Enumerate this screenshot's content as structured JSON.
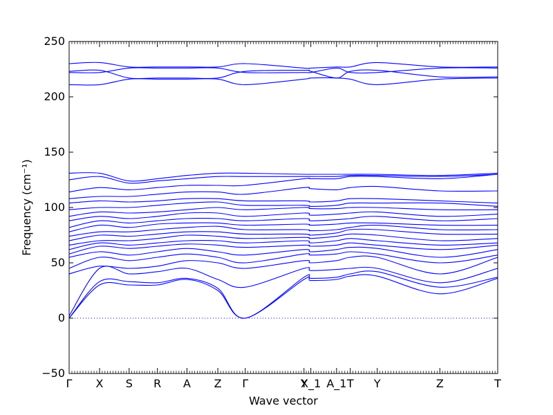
{
  "chart_data": {
    "type": "line",
    "title": "",
    "xlabel": "Wave vector",
    "ylabel": "Frequency (cm⁻¹)",
    "ylim": [
      -50,
      250
    ],
    "yticks": [
      -50,
      0,
      50,
      100,
      150,
      200,
      250
    ],
    "xlim": [
      0,
      1
    ],
    "high_symmetry_points": [
      {
        "label": "Γ",
        "x": 0.0
      },
      {
        "label": "X",
        "x": 0.071
      },
      {
        "label": "S",
        "x": 0.14
      },
      {
        "label": "R",
        "x": 0.206
      },
      {
        "label": "A",
        "x": 0.275
      },
      {
        "label": "Z",
        "x": 0.347
      },
      {
        "label": "Γ",
        "x": 0.411
      },
      {
        "label": "Y",
        "x": 0.548
      },
      {
        "label": "X_1",
        "x": 0.564
      },
      {
        "label": "A_1",
        "x": 0.624
      },
      {
        "label": "T",
        "x": 0.656
      },
      {
        "label": "Y",
        "x": 0.719
      },
      {
        "label": "Z",
        "x": 0.865
      },
      {
        "label": "T",
        "x": 1.0
      }
    ],
    "zero_line": 0,
    "line_color": "#0000ff",
    "series": [
      {
        "x": [
          0,
          0.071,
          0.14,
          0.206,
          0.275,
          0.347,
          0.411,
          0.548,
          0.564,
          0.624,
          0.656,
          0.719,
          0.865,
          1
        ],
        "y": [
          0,
          30,
          30,
          30,
          35,
          25,
          0,
          35,
          34,
          35,
          38,
          38,
          22,
          36
        ]
      },
      {
        "x": [
          0,
          0.071,
          0.14,
          0.206,
          0.275,
          0.347,
          0.411,
          0.548,
          0.564,
          0.624,
          0.656,
          0.719,
          0.865,
          1
        ],
        "y": [
          0,
          33,
          33,
          32,
          36,
          27,
          0,
          37,
          36,
          37,
          40,
          42,
          28,
          37
        ]
      },
      {
        "x": [
          0,
          0.071,
          0.14,
          0.206,
          0.275,
          0.347,
          0.411,
          0.548,
          0.564,
          0.624,
          0.656,
          0.719,
          0.865,
          1
        ],
        "y": [
          2,
          45,
          40,
          42,
          45,
          35,
          28,
          45,
          43,
          44,
          45,
          45,
          32,
          45
        ]
      },
      {
        "x": [
          0,
          0.071,
          0.14,
          0.206,
          0.275,
          0.347,
          0.411,
          0.548,
          0.564,
          0.624,
          0.656,
          0.719,
          0.865,
          1
        ],
        "y": [
          40,
          47,
          45,
          47,
          52,
          50,
          45,
          52,
          50,
          52,
          55,
          55,
          40,
          55
        ]
      },
      {
        "x": [
          0,
          0.071,
          0.14,
          0.206,
          0.275,
          0.347,
          0.411,
          0.548,
          0.564,
          0.624,
          0.656,
          0.719,
          0.865,
          1
        ],
        "y": [
          45,
          55,
          52,
          55,
          58,
          55,
          50,
          58,
          57,
          58,
          60,
          58,
          50,
          57
        ]
      },
      {
        "x": [
          0,
          0.071,
          0.14,
          0.206,
          0.275,
          0.347,
          0.411,
          0.548,
          0.564,
          0.624,
          0.656,
          0.719,
          0.865,
          1
        ],
        "y": [
          55,
          60,
          57,
          60,
          63,
          60,
          57,
          62,
          60,
          62,
          64,
          63,
          55,
          62
        ]
      },
      {
        "x": [
          0,
          0.071,
          0.14,
          0.206,
          0.275,
          0.347,
          0.411,
          0.548,
          0.564,
          0.624,
          0.656,
          0.719,
          0.865,
          1
        ],
        "y": [
          58,
          65,
          63,
          65,
          67,
          66,
          64,
          66,
          65,
          66,
          68,
          66,
          62,
          66
        ]
      },
      {
        "x": [
          0,
          0.071,
          0.14,
          0.206,
          0.275,
          0.347,
          0.411,
          0.548,
          0.564,
          0.624,
          0.656,
          0.719,
          0.865,
          1
        ],
        "y": [
          62,
          68,
          66,
          68,
          70,
          70,
          68,
          70,
          68,
          70,
          72,
          70,
          66,
          68
        ]
      },
      {
        "x": [
          0,
          0.071,
          0.14,
          0.206,
          0.275,
          0.347,
          0.411,
          0.548,
          0.564,
          0.624,
          0.656,
          0.719,
          0.865,
          1
        ],
        "y": [
          66,
          70,
          70,
          72,
          75,
          74,
          72,
          73,
          72,
          74,
          76,
          75,
          70,
          72
        ]
      },
      {
        "x": [
          0,
          0.071,
          0.14,
          0.206,
          0.275,
          0.347,
          0.411,
          0.548,
          0.564,
          0.624,
          0.656,
          0.719,
          0.865,
          1
        ],
        "y": [
          70,
          75,
          74,
          76,
          78,
          78,
          76,
          76,
          75,
          77,
          80,
          80,
          76,
          76
        ]
      },
      {
        "x": [
          0,
          0.071,
          0.14,
          0.206,
          0.275,
          0.347,
          0.411,
          0.548,
          0.564,
          0.624,
          0.656,
          0.719,
          0.865,
          1
        ],
        "y": [
          74,
          78,
          78,
          80,
          82,
          83,
          80,
          80,
          79,
          80,
          82,
          84,
          80,
          80
        ]
      },
      {
        "x": [
          0,
          0.071,
          0.14,
          0.206,
          0.275,
          0.347,
          0.411,
          0.548,
          0.564,
          0.624,
          0.656,
          0.719,
          0.865,
          1
        ],
        "y": [
          78,
          84,
          82,
          85,
          86,
          86,
          84,
          85,
          84,
          85,
          86,
          86,
          84,
          84
        ]
      },
      {
        "x": [
          0,
          0.071,
          0.14,
          0.206,
          0.275,
          0.347,
          0.411,
          0.548,
          0.564,
          0.624,
          0.656,
          0.719,
          0.865,
          1
        ],
        "y": [
          82,
          88,
          86,
          88,
          90,
          90,
          88,
          90,
          88,
          89,
          90,
          92,
          88,
          90
        ]
      },
      {
        "x": [
          0,
          0.071,
          0.14,
          0.206,
          0.275,
          0.347,
          0.411,
          0.548,
          0.564,
          0.624,
          0.656,
          0.719,
          0.865,
          1
        ],
        "y": [
          88,
          92,
          90,
          92,
          95,
          95,
          92,
          95,
          93,
          94,
          95,
          96,
          92,
          94
        ]
      },
      {
        "x": [
          0,
          0.071,
          0.14,
          0.206,
          0.275,
          0.347,
          0.411,
          0.548,
          0.564,
          0.624,
          0.656,
          0.719,
          0.865,
          1
        ],
        "y": [
          92,
          96,
          95,
          96,
          98,
          100,
          98,
          100,
          99,
          99,
          100,
          100,
          98,
          98
        ]
      },
      {
        "x": [
          0,
          0.071,
          0.14,
          0.206,
          0.275,
          0.347,
          0.411,
          0.548,
          0.564,
          0.624,
          0.656,
          0.719,
          0.865,
          1
        ],
        "y": [
          98,
          100,
          100,
          102,
          104,
          105,
          102,
          102,
          101,
          102,
          104,
          104,
          104,
          101
        ]
      },
      {
        "x": [
          0,
          0.071,
          0.14,
          0.206,
          0.275,
          0.347,
          0.411,
          0.548,
          0.564,
          0.624,
          0.656,
          0.719,
          0.865,
          1
        ],
        "y": [
          104,
          106,
          105,
          106,
          108,
          108,
          106,
          106,
          105,
          106,
          108,
          108,
          106,
          104
        ]
      },
      {
        "x": [
          0,
          0.071,
          0.14,
          0.206,
          0.275,
          0.347,
          0.411,
          0.548,
          0.564,
          0.624,
          0.656,
          0.719,
          0.865,
          1
        ],
        "y": [
          108,
          110,
          110,
          112,
          114,
          114,
          112,
          118,
          117,
          116,
          118,
          119,
          115,
          115
        ]
      },
      {
        "x": [
          0,
          0.071,
          0.14,
          0.206,
          0.275,
          0.347,
          0.411,
          0.548,
          0.564,
          0.624,
          0.656,
          0.719,
          0.865,
          1
        ],
        "y": [
          114,
          118,
          116,
          118,
          120,
          120,
          120,
          126,
          126,
          126,
          128,
          128,
          126,
          130
        ]
      },
      {
        "x": [
          0,
          0.071,
          0.14,
          0.206,
          0.275,
          0.347,
          0.411,
          0.548,
          0.564,
          0.624,
          0.656,
          0.719,
          0.865,
          1
        ],
        "y": [
          125,
          128,
          122,
          124,
          126,
          128,
          128,
          128,
          128,
          128,
          129,
          129,
          128,
          130
        ]
      },
      {
        "x": [
          0,
          0.071,
          0.14,
          0.206,
          0.275,
          0.347,
          0.411,
          0.548,
          0.564,
          0.624,
          0.656,
          0.719,
          0.865,
          1
        ],
        "y": [
          131,
          131,
          124,
          126,
          129,
          131,
          131,
          130,
          130,
          130,
          130,
          130,
          129,
          131
        ]
      },
      {
        "x": [
          0,
          0.071,
          0.14,
          0.206,
          0.275,
          0.347,
          0.411,
          0.548,
          0.564,
          0.624,
          0.656,
          0.719,
          0.865,
          1
        ],
        "y": [
          211,
          211,
          216,
          216,
          216,
          216,
          211,
          216,
          217,
          217,
          216,
          211,
          216,
          217
        ]
      },
      {
        "x": [
          0,
          0.071,
          0.14,
          0.206,
          0.275,
          0.347,
          0.411,
          0.548,
          0.564,
          0.624,
          0.656,
          0.719,
          0.865,
          1
        ],
        "y": [
          222,
          222,
          226,
          226,
          226,
          226,
          222,
          222,
          222,
          226,
          222,
          222,
          226,
          226
        ]
      },
      {
        "x": [
          0,
          0.071,
          0.14,
          0.206,
          0.275,
          0.347,
          0.411,
          0.548,
          0.564,
          0.624,
          0.656,
          0.719,
          0.865,
          1
        ],
        "y": [
          223,
          224,
          217,
          217,
          217,
          217,
          223,
          224,
          223,
          217,
          223,
          224,
          218,
          218
        ]
      },
      {
        "x": [
          0,
          0.071,
          0.14,
          0.206,
          0.275,
          0.347,
          0.411,
          0.548,
          0.564,
          0.624,
          0.656,
          0.719,
          0.865,
          1
        ],
        "y": [
          230,
          231,
          227,
          227,
          227,
          227,
          230,
          226,
          226,
          227,
          227,
          231,
          227,
          227
        ]
      }
    ]
  }
}
